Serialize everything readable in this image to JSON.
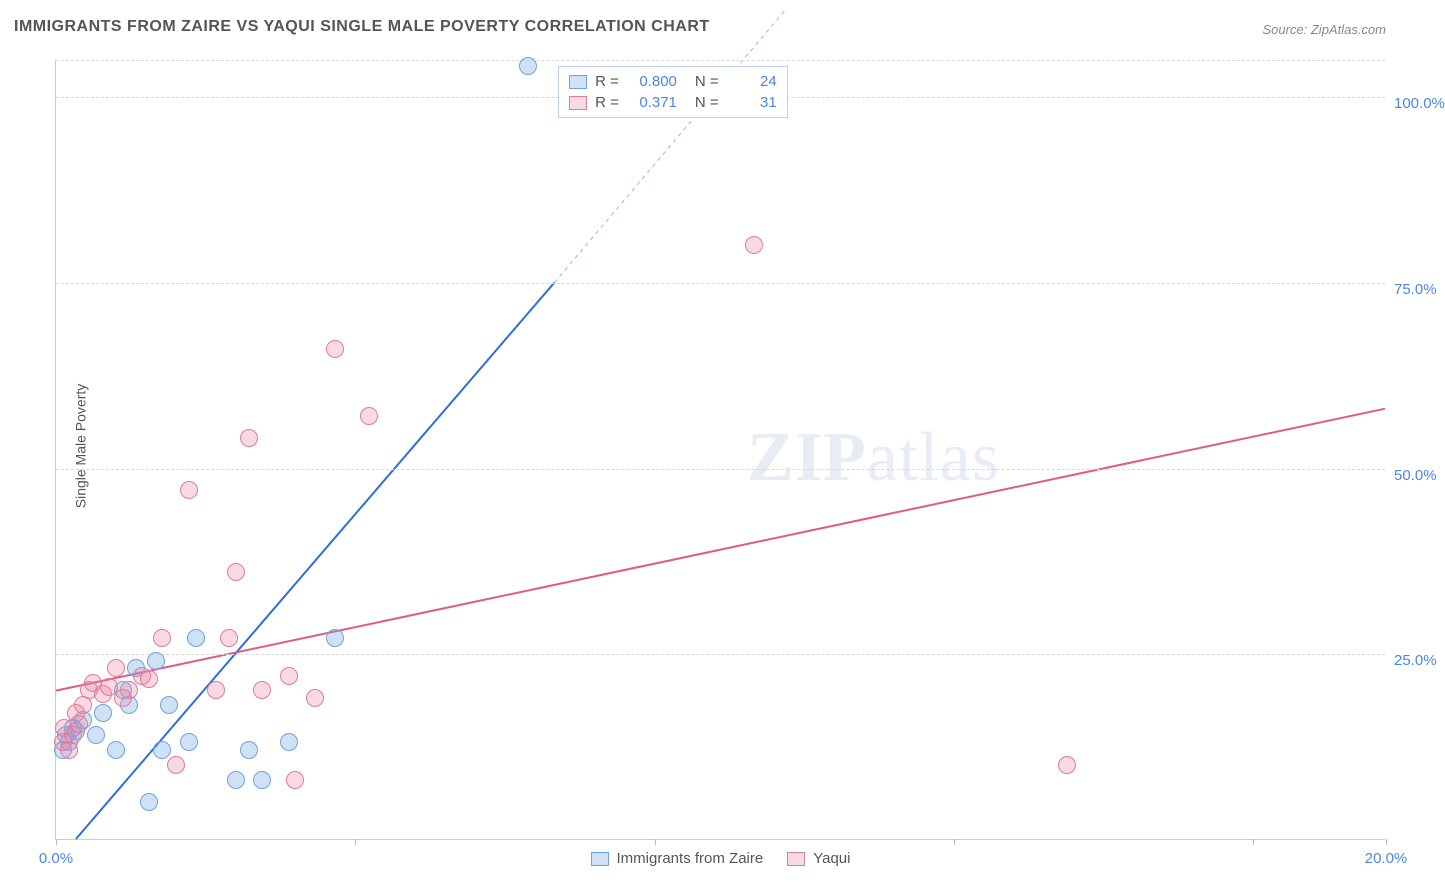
{
  "chart": {
    "type": "scatter",
    "title": "IMMIGRANTS FROM ZAIRE VS YAQUI SINGLE MALE POVERTY CORRELATION CHART",
    "source": "Source: ZipAtlas.com",
    "ylabel": "Single Male Poverty",
    "watermark_zip": "ZIP",
    "watermark_atlas": "atlas",
    "background_color": "#ffffff",
    "grid_color": "#d8d8d8",
    "axis_color": "#cccccc",
    "tick_label_color": "#4a86e8",
    "xlim": [
      0,
      20
    ],
    "ylim": [
      0,
      105
    ],
    "x_ticks": [
      0,
      4.5,
      9,
      13.5,
      18,
      20
    ],
    "x_tick_labels": [
      "0.0%",
      "",
      "",
      "",
      "",
      "20.0%"
    ],
    "y_ticks": [
      25,
      50,
      75,
      100,
      105
    ],
    "y_tick_labels": [
      "25.0%",
      "50.0%",
      "75.0%",
      "100.0%",
      ""
    ],
    "marker_radius": 9,
    "marker_stroke_width": 1.5,
    "trend_line_width": 2,
    "series": [
      {
        "name": "Immigrants from Zaire",
        "fill_color": "rgba(120,170,230,0.35)",
        "stroke_color": "#6da3e0",
        "trend_color": "#2e6fd6",
        "r": "0.800",
        "n": "24",
        "trend": {
          "x1": 0.3,
          "y1": 0,
          "x2": 7.5,
          "y2": 75,
          "dash_x2": 11,
          "dash_y2": 112
        },
        "points": [
          [
            0.1,
            12
          ],
          [
            0.15,
            14
          ],
          [
            0.2,
            13
          ],
          [
            0.25,
            15
          ],
          [
            0.3,
            14.5
          ],
          [
            0.4,
            16
          ],
          [
            0.6,
            14
          ],
          [
            0.7,
            17
          ],
          [
            0.9,
            12
          ],
          [
            1.0,
            20
          ],
          [
            1.1,
            18
          ],
          [
            1.2,
            23
          ],
          [
            1.4,
            5
          ],
          [
            1.5,
            24
          ],
          [
            1.6,
            12
          ],
          [
            1.7,
            18
          ],
          [
            2.0,
            13
          ],
          [
            2.1,
            27
          ],
          [
            2.7,
            8
          ],
          [
            2.9,
            12
          ],
          [
            3.1,
            8
          ],
          [
            3.5,
            13
          ],
          [
            4.2,
            27
          ],
          [
            7.1,
            104
          ]
        ]
      },
      {
        "name": "Yaqui",
        "fill_color": "rgba(235,130,160,0.3)",
        "stroke_color": "#e27a9b",
        "trend_color": "#e05a85",
        "r": "0.371",
        "n": "31",
        "trend": {
          "x1": 0,
          "y1": 20,
          "x2": 20,
          "y2": 58
        },
        "points": [
          [
            0.1,
            13
          ],
          [
            0.12,
            15
          ],
          [
            0.2,
            12
          ],
          [
            0.25,
            14
          ],
          [
            0.3,
            17
          ],
          [
            0.35,
            15.5
          ],
          [
            0.4,
            18
          ],
          [
            0.5,
            20
          ],
          [
            0.55,
            21
          ],
          [
            0.7,
            19.5
          ],
          [
            0.8,
            20.5
          ],
          [
            0.9,
            23
          ],
          [
            1.0,
            19
          ],
          [
            1.1,
            20
          ],
          [
            1.3,
            22
          ],
          [
            1.4,
            21.5
          ],
          [
            1.6,
            27
          ],
          [
            1.8,
            10
          ],
          [
            2.0,
            47
          ],
          [
            2.4,
            20
          ],
          [
            2.6,
            27
          ],
          [
            2.7,
            36
          ],
          [
            2.9,
            54
          ],
          [
            3.1,
            20
          ],
          [
            3.5,
            22
          ],
          [
            3.6,
            8
          ],
          [
            3.9,
            19
          ],
          [
            4.2,
            66
          ],
          [
            4.7,
            57
          ],
          [
            10.5,
            80
          ],
          [
            15.2,
            10
          ]
        ]
      }
    ],
    "legend_labels": {
      "r": "R =",
      "n": "N ="
    }
  }
}
